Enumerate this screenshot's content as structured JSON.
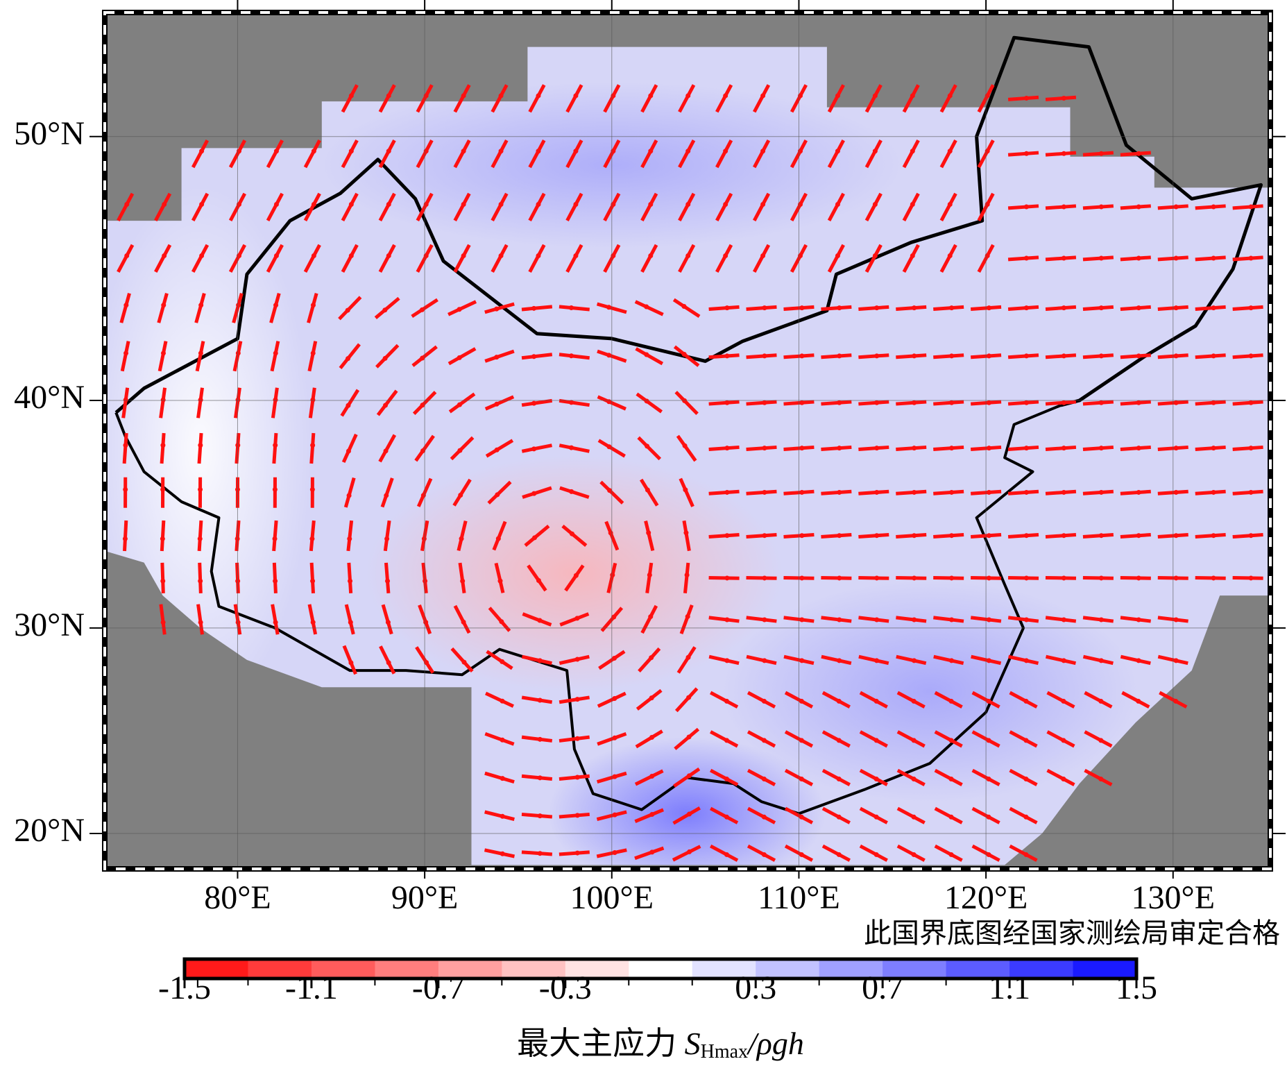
{
  "map": {
    "xlim": [
      72.9,
      135.2
    ],
    "ylim": [
      18.2,
      54.1
    ],
    "xticks": [
      {
        "value": 80,
        "label": "80°E"
      },
      {
        "value": 90,
        "label": "90°E"
      },
      {
        "value": 100,
        "label": "100°E"
      },
      {
        "value": 110,
        "label": "110°E"
      },
      {
        "value": 120,
        "label": "120°E"
      },
      {
        "value": 130,
        "label": "130°E"
      }
    ],
    "yticks": [
      {
        "value": 20,
        "label": "20°N"
      },
      {
        "value": 30,
        "label": "30°N"
      },
      {
        "value": 40,
        "label": "40°N"
      },
      {
        "value": 50,
        "label": "50°N"
      }
    ],
    "projection": "mercator",
    "grid": true,
    "note": "此国界底图经国家测绘局审定合格"
  },
  "colorbar": {
    "lim": [
      -1.5,
      1.5
    ],
    "ticks": [
      -1.5,
      -1.1,
      -0.7,
      -0.3,
      0.3,
      0.7,
      1.1,
      1.5
    ],
    "colors": [
      "#ff1a1a",
      "#ff3b3b",
      "#ff5c5c",
      "#ff7e7e",
      "#ffa0a0",
      "#ffc2c2",
      "#ffe2e2",
      "#ffffff",
      "#e2e2ff",
      "#c2c2ff",
      "#a0a0ff",
      "#7e7eff",
      "#5c5cff",
      "#3b3bff",
      "#1a1aff"
    ],
    "label": {
      "text": "最大主应力 ",
      "symbol": "S",
      "subscript": "Hmax",
      "rest": "/ρgh"
    }
  }
}
